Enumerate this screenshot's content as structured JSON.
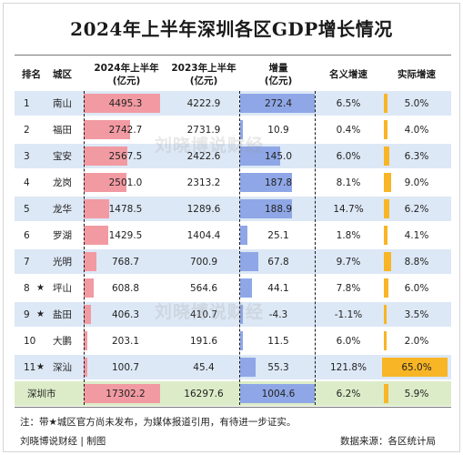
{
  "title": "2024年上半年深圳各区GDP增长情况",
  "header": {
    "rank": "排名",
    "district": "城区",
    "gdp2024": "2024年上半年",
    "gdp2024_unit": "(亿元)",
    "gdp2023": "2023年上半年",
    "gdp2023_unit": "(亿元)",
    "increase": "增量",
    "increase_unit": "(亿元)",
    "nominal": "名义增速",
    "real": "实际增速"
  },
  "rows": [
    {
      "rank": "1",
      "star": "",
      "district": "南山",
      "gdp2024": "4495.3",
      "gdp2023": "4222.9",
      "increase": "272.4",
      "nominal": "6.5%",
      "real": "5.0%"
    },
    {
      "rank": "2",
      "star": "",
      "district": "福田",
      "gdp2024": "2742.7",
      "gdp2023": "2731.9",
      "increase": "10.9",
      "nominal": "0.4%",
      "real": "4.0%"
    },
    {
      "rank": "3",
      "star": "",
      "district": "宝安",
      "gdp2024": "2567.5",
      "gdp2023": "2422.6",
      "increase": "145.0",
      "nominal": "6.0%",
      "real": "6.3%"
    },
    {
      "rank": "4",
      "star": "",
      "district": "龙岗",
      "gdp2024": "2501.0",
      "gdp2023": "2313.2",
      "increase": "187.8",
      "nominal": "8.1%",
      "real": "9.0%"
    },
    {
      "rank": "5",
      "star": "",
      "district": "龙华",
      "gdp2024": "1478.5",
      "gdp2023": "1289.6",
      "increase": "188.9",
      "nominal": "14.7%",
      "real": "6.2%"
    },
    {
      "rank": "6",
      "star": "",
      "district": "罗湖",
      "gdp2024": "1429.5",
      "gdp2023": "1404.4",
      "increase": "25.1",
      "nominal": "1.8%",
      "real": "4.1%"
    },
    {
      "rank": "7",
      "star": "",
      "district": "光明",
      "gdp2024": "768.7",
      "gdp2023": "700.9",
      "increase": "67.8",
      "nominal": "9.7%",
      "real": "8.8%"
    },
    {
      "rank": "8",
      "star": "★",
      "district": "坪山",
      "gdp2024": "608.8",
      "gdp2023": "564.6",
      "increase": "44.1",
      "nominal": "7.8%",
      "real": "6.0%"
    },
    {
      "rank": "9",
      "star": "★",
      "district": "盐田",
      "gdp2024": "406.3",
      "gdp2023": "410.7",
      "increase": "-4.3",
      "nominal": "-1.1%",
      "real": "3.5%"
    },
    {
      "rank": "10",
      "star": "",
      "district": "大鹏",
      "gdp2024": "203.1",
      "gdp2023": "191.6",
      "increase": "11.5",
      "nominal": "6.0%",
      "real": "2.0%"
    },
    {
      "rank": "11",
      "star": "★",
      "district": "深汕",
      "gdp2024": "100.7",
      "gdp2023": "45.4",
      "increase": "55.3",
      "nominal": "121.8%",
      "real": "65.0%"
    }
  ],
  "total": {
    "district": "深圳市",
    "gdp2024": "17302.2",
    "gdp2023": "16297.6",
    "increase": "1004.6",
    "nominal": "6.2%",
    "real": "5.9%"
  },
  "bars": {
    "gdp2024": [
      4495.3,
      2742.7,
      2567.5,
      2501.0,
      1478.5,
      1429.5,
      768.7,
      608.8,
      406.3,
      203.1,
      100.7,
      17302.2
    ],
    "increase": [
      272.4,
      10.9,
      145.0,
      187.8,
      188.9,
      25.1,
      67.8,
      44.1,
      -4.3,
      11.5,
      55.3,
      1004.6
    ],
    "real": [
      5.0,
      4.0,
      6.3,
      9.0,
      6.2,
      4.1,
      8.8,
      6.0,
      3.5,
      2.0,
      65.0,
      5.9
    ]
  },
  "watermark": "刘晓博说财经",
  "note": "注：带★城区官方尚未发布，为媒体报道引用，有待进一步证实。",
  "credit": "刘晓博说财经 | 制图",
  "source": "数据来源：各区统计局",
  "colors": {
    "gdp_bar": "#f29aa2",
    "increase_bar": "#8fa7e6",
    "real_bar": "#f8b526",
    "row_shade": "#dde8f6",
    "total_row": "#dcecc8"
  }
}
